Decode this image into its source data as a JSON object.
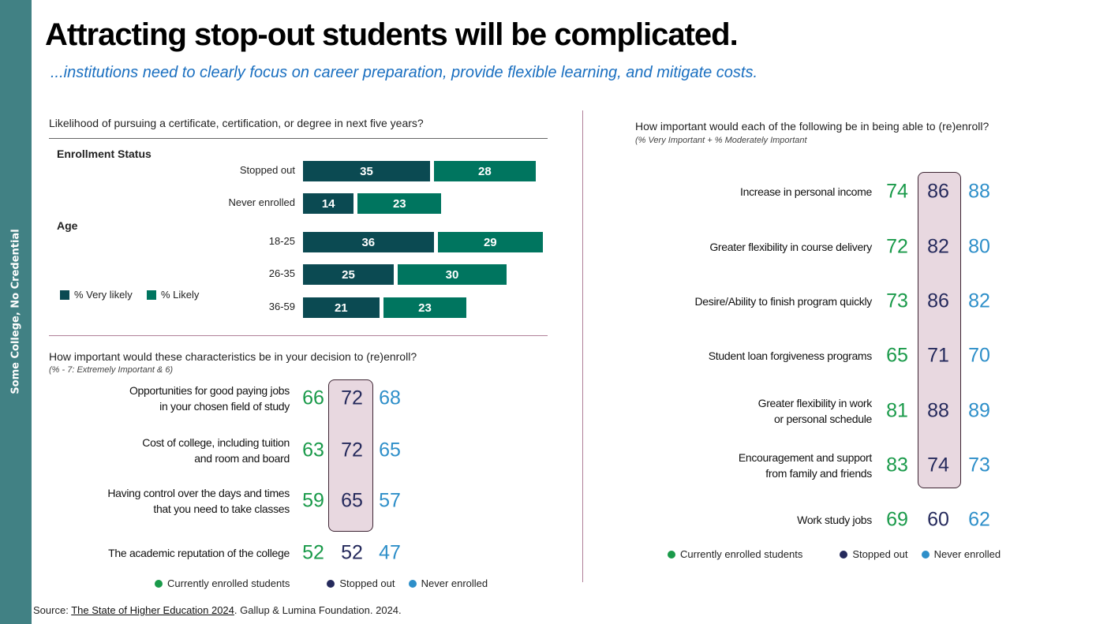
{
  "sidebar_label": "Some College, No Credential",
  "title": "Attracting stop-out students will be complicated.",
  "subtitle": "...institutions need to clearly focus on career preparation, provide flexible learning, and mitigate costs.",
  "colors": {
    "sidebar": "#418184",
    "very_likely": "#0b4a52",
    "likely": "#00755f",
    "currently_enrolled": "#1a9a4a",
    "stopped_out": "#252a5c",
    "never_enrolled": "#2e8fc9",
    "highlight": "#e8d8e0"
  },
  "chart_data": [
    {
      "type": "bar",
      "orientation": "horizontal-stacked",
      "title": "Likelihood of pursuing a certificate, certification, or degree in next five years?",
      "groups": [
        {
          "label": "Enrollment Status",
          "categories": [
            "Stopped out",
            "Never enrolled"
          ]
        },
        {
          "label": "Age",
          "categories": [
            "18-25",
            "26-35",
            "36-59"
          ]
        }
      ],
      "categories": [
        "Stopped out",
        "Never enrolled",
        "18-25",
        "26-35",
        "36-59"
      ],
      "series": [
        {
          "name": "% Very likely",
          "values": [
            35,
            14,
            36,
            25,
            21
          ]
        },
        {
          "name": "% Likely",
          "values": [
            28,
            23,
            29,
            30,
            23
          ]
        }
      ],
      "legend": "bottom-left"
    },
    {
      "type": "table",
      "title": "How important would these characteristics be in your decision to (re)enroll?",
      "subtitle": "(% - 7: Extremely Important & 6)",
      "columns": [
        "Currently enrolled students",
        "Stopped out",
        "Never enrolled"
      ],
      "rows": [
        {
          "label": [
            "Opportunities for good paying jobs",
            "in your chosen field of study"
          ],
          "values": [
            66,
            72,
            68
          ],
          "highlight": true
        },
        {
          "label": [
            "Cost of college, including tuition",
            "and room and board"
          ],
          "values": [
            63,
            72,
            65
          ],
          "highlight": true
        },
        {
          "label": [
            "Having control over the days and times",
            "that you need to take classes"
          ],
          "values": [
            59,
            65,
            57
          ],
          "highlight": true
        },
        {
          "label": [
            "The academic reputation of the college"
          ],
          "values": [
            52,
            52,
            47
          ],
          "highlight": false
        }
      ],
      "highlighted_column": "Stopped out"
    },
    {
      "type": "table",
      "title": "How important would each of the following be in being able to (re)enroll?",
      "subtitle": "(% Very Important + % Moderately Important",
      "columns": [
        "Currently enrolled students",
        "Stopped out",
        "Never enrolled"
      ],
      "rows": [
        {
          "label": [
            "Increase in personal income"
          ],
          "values": [
            74,
            86,
            88
          ],
          "highlight": true
        },
        {
          "label": [
            "Greater flexibility in course delivery"
          ],
          "values": [
            72,
            82,
            80
          ],
          "highlight": true
        },
        {
          "label": [
            "Desire/Ability to finish program quickly"
          ],
          "values": [
            73,
            86,
            82
          ],
          "highlight": true
        },
        {
          "label": [
            "Student loan forgiveness programs"
          ],
          "values": [
            65,
            71,
            70
          ],
          "highlight": true
        },
        {
          "label": [
            "Greater flexibility in work",
            "or personal schedule"
          ],
          "values": [
            81,
            88,
            89
          ],
          "highlight": true
        },
        {
          "label": [
            "Encouragement and support",
            "from family and friends"
          ],
          "values": [
            83,
            74,
            73
          ],
          "highlight": true
        },
        {
          "label": [
            "Work study jobs"
          ],
          "values": [
            69,
            60,
            62
          ],
          "highlight": false
        }
      ],
      "highlighted_column": "Stopped out"
    }
  ],
  "source": {
    "prefix": "Source: ",
    "link": "The State of Higher Education 2024",
    "suffix": ". Gallup & Lumina Foundation. 2024."
  }
}
